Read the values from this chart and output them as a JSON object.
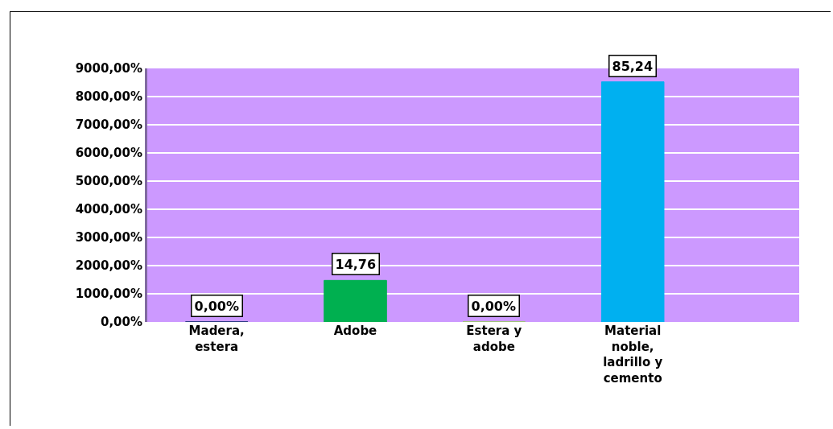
{
  "chart_data": {
    "type": "bar",
    "categories": [
      "Madera, estera",
      "Adobe",
      "Estera y adobe",
      "Material noble, ladrillo y cemento"
    ],
    "values": [
      0,
      14.76,
      0,
      85.24
    ],
    "colors": [
      "#002060",
      "#00b050",
      "#92d050",
      "#00b0f0"
    ],
    "value_labels": [
      "0,00%",
      "14,76",
      "0,00%",
      "85,24"
    ],
    "ylim": [
      0,
      90
    ],
    "yticks": [
      {
        "value": 0,
        "label": "0,00%"
      },
      {
        "value": 10,
        "label": "1000,00%"
      },
      {
        "value": 20,
        "label": "2000,00%"
      },
      {
        "value": 30,
        "label": "3000,00%"
      },
      {
        "value": 40,
        "label": "4000,00%"
      },
      {
        "value": 50,
        "label": "5000,00%"
      },
      {
        "value": 60,
        "label": "6000,00%"
      },
      {
        "value": 70,
        "label": "7000,00%"
      },
      {
        "value": 80,
        "label": "8000,00%"
      },
      {
        "value": 90,
        "label": "9000,00%"
      }
    ],
    "grid": "y"
  }
}
